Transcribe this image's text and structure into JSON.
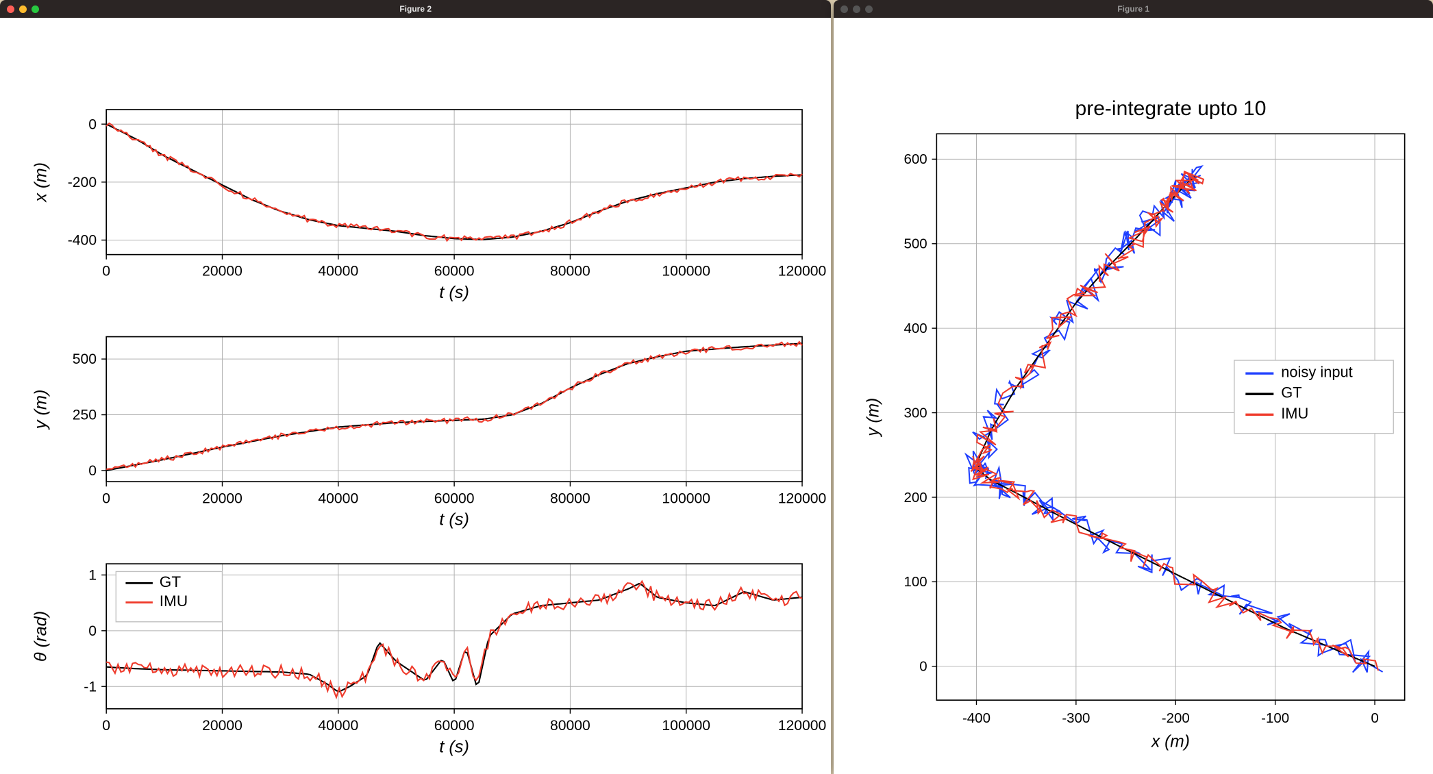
{
  "windows": {
    "fig2": {
      "title": "Figure 2",
      "active": true
    },
    "fig1": {
      "title": "Figure 1",
      "active": false
    }
  },
  "colors": {
    "gt": "#000000",
    "imu": "#ef3b2c",
    "noisy": "#1f3fff",
    "grid": "#b0b0b0",
    "frame": "#000000",
    "bg": "#ffffff"
  },
  "fonts": {
    "tick_pt": 15,
    "label_pt": 18,
    "title_pt": 22,
    "legend_pt": 16
  },
  "fig2_subplots": [
    {
      "ylabel": "x (m)",
      "xlabel": "t (s)",
      "xlim": [
        0,
        120000
      ],
      "xtick_step": 20000,
      "ylim": [
        -450,
        50
      ],
      "yticks": [
        -400,
        -200,
        0
      ],
      "line_width": 1.5,
      "series": {
        "gt": {
          "color": "#000000",
          "t": [
            0,
            5000,
            10000,
            15000,
            20000,
            25000,
            30000,
            35000,
            40000,
            45000,
            50000,
            55000,
            60000,
            65000,
            70000,
            75000,
            80000,
            85000,
            90000,
            95000,
            100000,
            105000,
            110000,
            115000,
            120000
          ],
          "v": [
            0,
            -50,
            -110,
            -160,
            -210,
            -260,
            -300,
            -330,
            -350,
            -360,
            -370,
            -385,
            -395,
            -398,
            -390,
            -370,
            -340,
            -300,
            -265,
            -240,
            -220,
            -200,
            -188,
            -180,
            -175
          ]
        },
        "imu": {
          "color": "#ef3b2c",
          "noise_amp": 10,
          "t": [
            0,
            5000,
            10000,
            15000,
            20000,
            25000,
            30000,
            35000,
            40000,
            45000,
            50000,
            55000,
            60000,
            65000,
            70000,
            75000,
            80000,
            85000,
            90000,
            95000,
            100000,
            105000,
            110000,
            115000,
            120000
          ],
          "v": [
            0,
            -50,
            -110,
            -160,
            -210,
            -260,
            -300,
            -330,
            -350,
            -360,
            -370,
            -385,
            -395,
            -398,
            -390,
            -370,
            -340,
            -300,
            -265,
            -240,
            -220,
            -200,
            -188,
            -180,
            -175
          ]
        }
      }
    },
    {
      "ylabel": "y (m)",
      "xlabel": "t (s)",
      "xlim": [
        0,
        120000
      ],
      "xtick_step": 20000,
      "ylim": [
        -50,
        600
      ],
      "yticks": [
        0,
        250,
        500
      ],
      "line_width": 1.5,
      "series": {
        "gt": {
          "color": "#000000",
          "t": [
            0,
            10000,
            20000,
            30000,
            40000,
            50000,
            60000,
            65000,
            70000,
            75000,
            80000,
            85000,
            90000,
            95000,
            100000,
            110000,
            120000
          ],
          "v": [
            0,
            50,
            105,
            155,
            195,
            215,
            225,
            230,
            250,
            300,
            370,
            430,
            480,
            510,
            535,
            555,
            570
          ]
        },
        "imu": {
          "color": "#ef3b2c",
          "noise_amp": 12,
          "t": [
            0,
            10000,
            20000,
            30000,
            40000,
            50000,
            60000,
            65000,
            70000,
            75000,
            80000,
            85000,
            90000,
            95000,
            100000,
            110000,
            120000
          ],
          "v": [
            0,
            50,
            105,
            155,
            195,
            215,
            225,
            230,
            250,
            300,
            370,
            430,
            480,
            510,
            535,
            555,
            570
          ]
        }
      }
    },
    {
      "ylabel": "θ (rad)",
      "xlabel": "t (s)",
      "xlim": [
        0,
        120000
      ],
      "xtick_step": 20000,
      "ylim": [
        -1.4,
        1.2
      ],
      "yticks": [
        -1,
        0,
        1
      ],
      "line_width": 1.5,
      "legend": {
        "pos": "upper-left",
        "items": [
          {
            "label": "GT",
            "color": "#000000"
          },
          {
            "label": "IMU",
            "color": "#ef3b2c"
          }
        ]
      },
      "series": {
        "gt": {
          "color": "#000000",
          "t": [
            0,
            5000,
            10000,
            20000,
            30000,
            35000,
            38000,
            40000,
            42000,
            45000,
            47000,
            50000,
            55000,
            58000,
            60000,
            62000,
            64000,
            66000,
            70000,
            75000,
            80000,
            85000,
            90000,
            92000,
            95000,
            100000,
            105000,
            110000,
            115000,
            120000
          ],
          "v": [
            -0.65,
            -0.68,
            -0.7,
            -0.72,
            -0.74,
            -0.78,
            -0.95,
            -1.1,
            -1.0,
            -0.8,
            -0.2,
            -0.55,
            -0.9,
            -0.5,
            -0.95,
            -0.3,
            -1.05,
            -0.1,
            0.3,
            0.45,
            0.5,
            0.55,
            0.75,
            0.85,
            0.6,
            0.5,
            0.45,
            0.7,
            0.55,
            0.6
          ]
        },
        "imu": {
          "color": "#ef3b2c",
          "noise_amp": 0.12,
          "t": [
            0,
            5000,
            10000,
            20000,
            30000,
            35000,
            38000,
            40000,
            42000,
            45000,
            47000,
            50000,
            55000,
            58000,
            60000,
            62000,
            64000,
            66000,
            70000,
            75000,
            80000,
            85000,
            90000,
            92000,
            95000,
            100000,
            105000,
            110000,
            115000,
            120000
          ],
          "v": [
            -0.65,
            -0.68,
            -0.7,
            -0.72,
            -0.74,
            -0.78,
            -0.95,
            -1.1,
            -1.0,
            -0.8,
            -0.2,
            -0.55,
            -0.9,
            -0.5,
            -0.95,
            -0.3,
            -1.05,
            -0.1,
            0.3,
            0.45,
            0.5,
            0.55,
            0.75,
            0.85,
            0.6,
            0.5,
            0.45,
            0.7,
            0.55,
            0.6
          ]
        }
      }
    }
  ],
  "fig1": {
    "title": "pre-integrate upto 10",
    "xlabel": "x (m)",
    "ylabel": "y (m)",
    "xlim": [
      -440,
      30
    ],
    "xticks": [
      -400,
      -300,
      -200,
      -100,
      0
    ],
    "ylim": [
      -40,
      630
    ],
    "yticks": [
      0,
      100,
      200,
      300,
      400,
      500,
      600
    ],
    "grid": true,
    "line_width": 1.5,
    "legend": {
      "pos": "right",
      "items": [
        {
          "label": "noisy input",
          "color": "#1f3fff"
        },
        {
          "label": "GT",
          "color": "#000000"
        },
        {
          "label": "IMU",
          "color": "#ef3b2c"
        }
      ]
    },
    "trajectory_gt": {
      "x": [
        0,
        -40,
        -90,
        -150,
        -210,
        -270,
        -320,
        -360,
        -385,
        -398,
        -398,
        -385,
        -360,
        -330,
        -300,
        -270,
        -245,
        -225,
        -210,
        -198,
        -188,
        -180
      ],
      "y": [
        0,
        20,
        45,
        80,
        115,
        150,
        180,
        205,
        220,
        232,
        245,
        280,
        330,
        380,
        430,
        470,
        500,
        525,
        545,
        560,
        572,
        580
      ]
    },
    "noise_amp_noisy": 14,
    "noise_amp_imu": 10
  }
}
